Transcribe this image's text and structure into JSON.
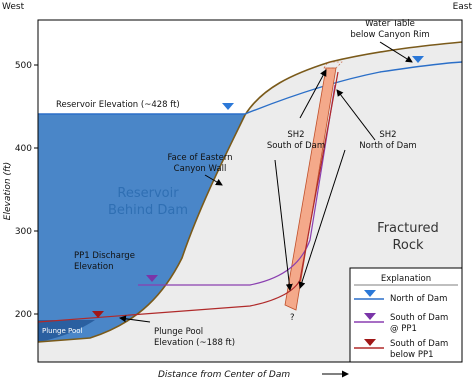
{
  "header": {
    "west": "West",
    "east": "East"
  },
  "axes": {
    "y_label": "Elevation (ft)",
    "x_label": "Distance from Center of Dam",
    "yticks": [
      200,
      300,
      400,
      500
    ]
  },
  "labels": {
    "reservoir_elevation": "Reservoir Elevation (~428 ft)",
    "canyon_wall": [
      "Face of Eastern",
      "Canyon Wall"
    ],
    "reservoir": [
      "Reservoir",
      "Behind Dam"
    ],
    "water_table": [
      "Water Table",
      "below Canyon Rim"
    ],
    "sh2_south": [
      "SH2",
      "South of Dam"
    ],
    "sh2_north": [
      "SH2",
      "North of Dam"
    ],
    "fractured_rock": [
      "Fractured",
      "Rock"
    ],
    "pp1_discharge": [
      "PP1 Discharge",
      "Elevation"
    ],
    "plunge_pool": "Plunge Pool",
    "plunge_pool_elevation": [
      "Plunge Pool",
      "Elevation (~188 ft)"
    ],
    "unknown": "?"
  },
  "legend": {
    "title": "Explanation",
    "items": [
      {
        "lines": [
          "North of Dam"
        ]
      },
      {
        "lines": [
          "South of Dam",
          "@ PP1"
        ]
      },
      {
        "lines": [
          "South of Dam",
          "below PP1"
        ]
      }
    ]
  }
}
